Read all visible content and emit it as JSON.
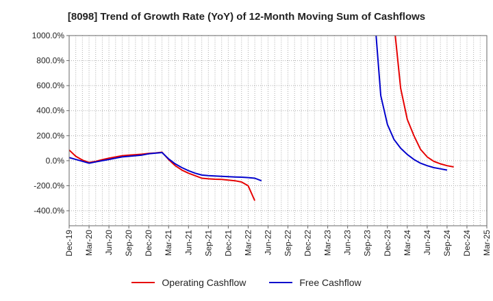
{
  "chart_data": {
    "type": "line",
    "title": "[8098]  Trend of Growth Rate (YoY) of 12-Month Moving Sum of Cashflows",
    "xlabel": "",
    "ylabel": "",
    "ylim": [
      -520,
      1000
    ],
    "y_ticks": [
      1000,
      800,
      600,
      400,
      200,
      0,
      -200,
      -400
    ],
    "y_tick_labels": [
      "1000.0%",
      "800.0%",
      "600.0%",
      "400.0%",
      "200.0%",
      "0.0%",
      "-200.0%",
      "-400.0%"
    ],
    "x_tick_labels": [
      "Dec-19",
      "Mar-20",
      "Jun-20",
      "Sep-20",
      "Dec-20",
      "Mar-21",
      "Jun-21",
      "Sep-21",
      "Dec-21",
      "Mar-22",
      "Jun-22",
      "Sep-22",
      "Dec-22",
      "Mar-23",
      "Jun-23",
      "Sep-23",
      "Dec-23",
      "Mar-24",
      "Jun-24",
      "Sep-24",
      "Dec-24",
      "Mar-25"
    ],
    "grid": true,
    "legend_position": "bottom",
    "series": [
      {
        "name": "Operating Cashflow",
        "color": "#e60000",
        "values": [
          85,
          35,
          5,
          -15,
          -5,
          8,
          20,
          30,
          40,
          45,
          48,
          52,
          58,
          62,
          68,
          10,
          -40,
          -75,
          -100,
          -120,
          -140,
          -145,
          -148,
          -150,
          -155,
          -160,
          -170,
          -200,
          -320,
          null,
          null,
          null,
          null,
          null,
          null,
          null,
          null,
          null,
          null,
          null,
          null,
          null,
          null,
          null,
          null,
          null,
          null,
          null,
          null,
          1100,
          580,
          330,
          200,
          90,
          30,
          -5,
          -25,
          -40,
          -50
        ]
      },
      {
        "name": "Free Cashflow",
        "color": "#0000cc",
        "values": [
          25,
          10,
          -5,
          -20,
          -10,
          0,
          10,
          20,
          30,
          35,
          40,
          45,
          55,
          60,
          65,
          15,
          -25,
          -55,
          -80,
          -100,
          -115,
          -120,
          -122,
          -125,
          -128,
          -130,
          -132,
          -135,
          -140,
          -160,
          null,
          null,
          null,
          null,
          null,
          null,
          null,
          null,
          null,
          null,
          null,
          null,
          null,
          null,
          null,
          null,
          1200,
          520,
          290,
          170,
          100,
          50,
          10,
          -20,
          -40,
          -55,
          -65,
          -75
        ]
      }
    ]
  }
}
